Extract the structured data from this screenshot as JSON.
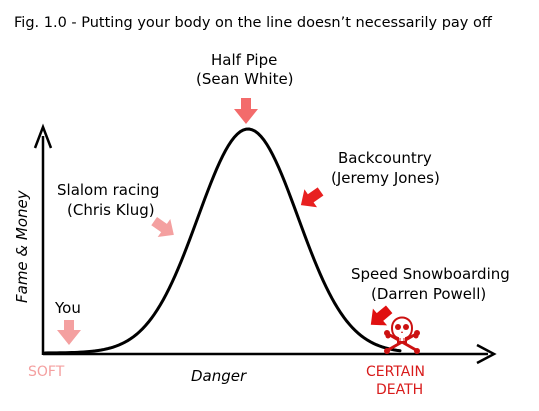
{
  "caption": "Fig. 1.0  -  Putting your body on the line doesn’t necessarily pay off",
  "axes": {
    "y_label": "Fame & Money",
    "x_label": "Danger",
    "x_start_label": "SOFT",
    "x_end_label_line1": "CERTAIN",
    "x_end_label_line2": "DEATH"
  },
  "annotations": {
    "half_pipe": {
      "line1": "Half Pipe",
      "line2": "(Sean White)"
    },
    "backcountry": {
      "line1": "Backcountry",
      "line2": "(Jeremy Jones)"
    },
    "slalom": {
      "line1": "Slalom racing",
      "line2": "(Chris Klug)"
    },
    "speed": {
      "line1": "Speed Snowboarding",
      "line2": "(Darren Powell)"
    },
    "you": {
      "line1": "You"
    }
  },
  "colors": {
    "axis": "#000000",
    "curve": "#000000",
    "soft_text": "#f4a0a0",
    "death_text": "#d81b1b",
    "arrow_light": "#f4a0a0",
    "arrow_mid": "#f36b6b",
    "arrow_strong": "#e01010",
    "skull": "#cc1111"
  },
  "icons": {
    "skull": "skull-crossbones-icon"
  }
}
